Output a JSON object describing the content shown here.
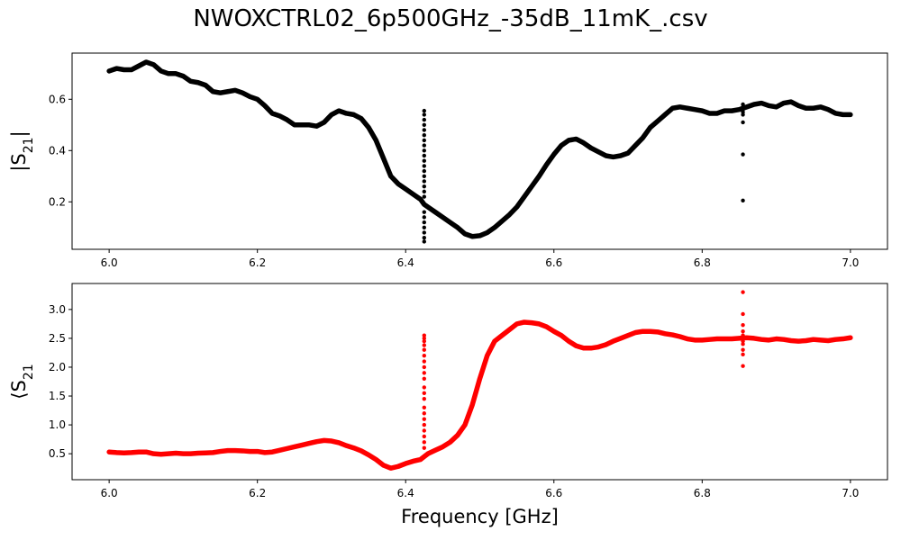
{
  "figure": {
    "title": "NWOXCTRL02_6p500GHz_-35dB_11mK_.csv"
  },
  "chart_data": [
    {
      "type": "scatter",
      "ylabel": "|S21|",
      "ylabel_main": "|S",
      "ylabel_sub": "21",
      "ylabel_tail": "|",
      "xlabel": "",
      "xlim": [
        5.95,
        7.05
      ],
      "ylim": [
        0.015,
        0.78
      ],
      "xticks": [
        "6.0",
        "6.2",
        "6.4",
        "6.6",
        "6.8",
        "7.0"
      ],
      "xtick_values": [
        6.0,
        6.2,
        6.4,
        6.6,
        6.8,
        7.0
      ],
      "yticks": [
        "0.2",
        "0.4",
        "0.6"
      ],
      "ytick_values": [
        0.2,
        0.4,
        0.6
      ],
      "grid": false,
      "color": "#000000",
      "series": [
        {
          "trace": [
            [
              6.0,
              0.71
            ],
            [
              6.01,
              0.72
            ],
            [
              6.02,
              0.715
            ],
            [
              6.03,
              0.715
            ],
            [
              6.04,
              0.73
            ],
            [
              6.05,
              0.745
            ],
            [
              6.06,
              0.735
            ],
            [
              6.07,
              0.71
            ],
            [
              6.08,
              0.7
            ],
            [
              6.09,
              0.7
            ],
            [
              6.1,
              0.69
            ],
            [
              6.11,
              0.67
            ],
            [
              6.12,
              0.665
            ],
            [
              6.13,
              0.655
            ],
            [
              6.14,
              0.63
            ],
            [
              6.15,
              0.625
            ],
            [
              6.16,
              0.63
            ],
            [
              6.17,
              0.635
            ],
            [
              6.18,
              0.625
            ],
            [
              6.19,
              0.61
            ],
            [
              6.2,
              0.6
            ],
            [
              6.21,
              0.575
            ],
            [
              6.22,
              0.545
            ],
            [
              6.23,
              0.535
            ],
            [
              6.24,
              0.52
            ],
            [
              6.25,
              0.5
            ],
            [
              6.26,
              0.5
            ],
            [
              6.27,
              0.5
            ],
            [
              6.28,
              0.495
            ],
            [
              6.29,
              0.51
            ],
            [
              6.3,
              0.54
            ],
            [
              6.31,
              0.555
            ],
            [
              6.32,
              0.545
            ],
            [
              6.33,
              0.54
            ],
            [
              6.34,
              0.525
            ],
            [
              6.35,
              0.49
            ],
            [
              6.36,
              0.44
            ],
            [
              6.37,
              0.37
            ],
            [
              6.38,
              0.3
            ],
            [
              6.39,
              0.27
            ],
            [
              6.4,
              0.25
            ],
            [
              6.41,
              0.23
            ],
            [
              6.42,
              0.21
            ],
            [
              6.425,
              0.19
            ],
            [
              6.43,
              0.18
            ],
            [
              6.44,
              0.16
            ],
            [
              6.45,
              0.14
            ],
            [
              6.46,
              0.12
            ],
            [
              6.47,
              0.1
            ],
            [
              6.48,
              0.075
            ],
            [
              6.49,
              0.065
            ],
            [
              6.5,
              0.068
            ],
            [
              6.51,
              0.08
            ],
            [
              6.52,
              0.1
            ],
            [
              6.53,
              0.125
            ],
            [
              6.54,
              0.15
            ],
            [
              6.55,
              0.18
            ],
            [
              6.56,
              0.22
            ],
            [
              6.57,
              0.26
            ],
            [
              6.58,
              0.3
            ],
            [
              6.59,
              0.345
            ],
            [
              6.6,
              0.385
            ],
            [
              6.61,
              0.42
            ],
            [
              6.62,
              0.44
            ],
            [
              6.63,
              0.445
            ],
            [
              6.64,
              0.43
            ],
            [
              6.65,
              0.41
            ],
            [
              6.66,
              0.395
            ],
            [
              6.67,
              0.38
            ],
            [
              6.68,
              0.375
            ],
            [
              6.69,
              0.38
            ],
            [
              6.7,
              0.39
            ],
            [
              6.71,
              0.42
            ],
            [
              6.72,
              0.45
            ],
            [
              6.73,
              0.49
            ],
            [
              6.74,
              0.515
            ],
            [
              6.75,
              0.54
            ],
            [
              6.76,
              0.565
            ],
            [
              6.77,
              0.57
            ],
            [
              6.78,
              0.565
            ],
            [
              6.79,
              0.56
            ],
            [
              6.8,
              0.555
            ],
            [
              6.81,
              0.545
            ],
            [
              6.82,
              0.545
            ],
            [
              6.83,
              0.555
            ],
            [
              6.84,
              0.555
            ],
            [
              6.85,
              0.56
            ],
            [
              6.86,
              0.57
            ],
            [
              6.87,
              0.58
            ],
            [
              6.88,
              0.585
            ],
            [
              6.89,
              0.575
            ],
            [
              6.9,
              0.57
            ],
            [
              6.91,
              0.585
            ],
            [
              6.92,
              0.59
            ],
            [
              6.93,
              0.575
            ],
            [
              6.94,
              0.565
            ],
            [
              6.95,
              0.565
            ],
            [
              6.96,
              0.57
            ],
            [
              6.97,
              0.56
            ],
            [
              6.98,
              0.545
            ],
            [
              6.99,
              0.54
            ],
            [
              7.0,
              0.54
            ]
          ],
          "outliers": [
            [
              6.425,
              0.555
            ],
            [
              6.425,
              0.54
            ],
            [
              6.425,
              0.52
            ],
            [
              6.425,
              0.5
            ],
            [
              6.425,
              0.48
            ],
            [
              6.425,
              0.46
            ],
            [
              6.425,
              0.44
            ],
            [
              6.425,
              0.42
            ],
            [
              6.425,
              0.4
            ],
            [
              6.425,
              0.38
            ],
            [
              6.425,
              0.36
            ],
            [
              6.425,
              0.34
            ],
            [
              6.425,
              0.32
            ],
            [
              6.425,
              0.3
            ],
            [
              6.425,
              0.28
            ],
            [
              6.425,
              0.26
            ],
            [
              6.425,
              0.24
            ],
            [
              6.425,
              0.22
            ],
            [
              6.425,
              0.16
            ],
            [
              6.425,
              0.14
            ],
            [
              6.425,
              0.12
            ],
            [
              6.425,
              0.1
            ],
            [
              6.425,
              0.08
            ],
            [
              6.425,
              0.06
            ],
            [
              6.425,
              0.045
            ],
            [
              6.855,
              0.58
            ],
            [
              6.855,
              0.57
            ],
            [
              6.855,
              0.56
            ],
            [
              6.855,
              0.55
            ],
            [
              6.855,
              0.54
            ],
            [
              6.855,
              0.51
            ],
            [
              6.855,
              0.385
            ],
            [
              6.855,
              0.205
            ]
          ]
        }
      ]
    },
    {
      "type": "scatter",
      "ylabel": "∠S21",
      "ylabel_main": "⟨S",
      "ylabel_sub": "21",
      "ylabel_tail": "",
      "xlabel": "Frequency [GHz]",
      "xlim": [
        5.95,
        7.05
      ],
      "ylim": [
        0.05,
        3.45
      ],
      "xticks": [
        "6.0",
        "6.2",
        "6.4",
        "6.6",
        "6.8",
        "7.0"
      ],
      "xtick_values": [
        6.0,
        6.2,
        6.4,
        6.6,
        6.8,
        7.0
      ],
      "yticks": [
        "0.5",
        "1.0",
        "1.5",
        "2.0",
        "2.5",
        "3.0"
      ],
      "ytick_values": [
        0.5,
        1.0,
        1.5,
        2.0,
        2.5,
        3.0
      ],
      "grid": false,
      "color": "#ff0000",
      "series": [
        {
          "trace": [
            [
              6.0,
              0.53
            ],
            [
              6.01,
              0.52
            ],
            [
              6.02,
              0.515
            ],
            [
              6.03,
              0.52
            ],
            [
              6.04,
              0.53
            ],
            [
              6.05,
              0.53
            ],
            [
              6.06,
              0.5
            ],
            [
              6.07,
              0.49
            ],
            [
              6.08,
              0.5
            ],
            [
              6.09,
              0.51
            ],
            [
              6.1,
              0.5
            ],
            [
              6.11,
              0.5
            ],
            [
              6.12,
              0.51
            ],
            [
              6.13,
              0.515
            ],
            [
              6.14,
              0.52
            ],
            [
              6.15,
              0.54
            ],
            [
              6.16,
              0.555
            ],
            [
              6.17,
              0.555
            ],
            [
              6.18,
              0.55
            ],
            [
              6.19,
              0.54
            ],
            [
              6.2,
              0.54
            ],
            [
              6.21,
              0.52
            ],
            [
              6.22,
              0.53
            ],
            [
              6.23,
              0.56
            ],
            [
              6.24,
              0.59
            ],
            [
              6.25,
              0.62
            ],
            [
              6.26,
              0.65
            ],
            [
              6.27,
              0.68
            ],
            [
              6.28,
              0.71
            ],
            [
              6.29,
              0.73
            ],
            [
              6.3,
              0.72
            ],
            [
              6.31,
              0.69
            ],
            [
              6.32,
              0.64
            ],
            [
              6.33,
              0.6
            ],
            [
              6.34,
              0.55
            ],
            [
              6.35,
              0.48
            ],
            [
              6.36,
              0.4
            ],
            [
              6.37,
              0.3
            ],
            [
              6.38,
              0.25
            ],
            [
              6.39,
              0.28
            ],
            [
              6.4,
              0.33
            ],
            [
              6.41,
              0.37
            ],
            [
              6.42,
              0.4
            ],
            [
              6.43,
              0.5
            ],
            [
              6.44,
              0.56
            ],
            [
              6.45,
              0.62
            ],
            [
              6.46,
              0.7
            ],
            [
              6.47,
              0.82
            ],
            [
              6.48,
              1.0
            ],
            [
              6.49,
              1.35
            ],
            [
              6.5,
              1.8
            ],
            [
              6.51,
              2.2
            ],
            [
              6.52,
              2.45
            ],
            [
              6.53,
              2.55
            ],
            [
              6.54,
              2.65
            ],
            [
              6.55,
              2.75
            ],
            [
              6.56,
              2.78
            ],
            [
              6.57,
              2.77
            ],
            [
              6.58,
              2.75
            ],
            [
              6.59,
              2.7
            ],
            [
              6.6,
              2.62
            ],
            [
              6.61,
              2.55
            ],
            [
              6.62,
              2.45
            ],
            [
              6.63,
              2.37
            ],
            [
              6.64,
              2.33
            ],
            [
              6.65,
              2.33
            ],
            [
              6.66,
              2.35
            ],
            [
              6.67,
              2.39
            ],
            [
              6.68,
              2.45
            ],
            [
              6.69,
              2.5
            ],
            [
              6.7,
              2.55
            ],
            [
              6.71,
              2.6
            ],
            [
              6.72,
              2.62
            ],
            [
              6.73,
              2.62
            ],
            [
              6.74,
              2.61
            ],
            [
              6.75,
              2.58
            ],
            [
              6.76,
              2.56
            ],
            [
              6.77,
              2.53
            ],
            [
              6.78,
              2.49
            ],
            [
              6.79,
              2.47
            ],
            [
              6.8,
              2.47
            ],
            [
              6.81,
              2.48
            ],
            [
              6.82,
              2.49
            ],
            [
              6.83,
              2.49
            ],
            [
              6.84,
              2.49
            ],
            [
              6.85,
              2.5
            ],
            [
              6.86,
              2.51
            ],
            [
              6.87,
              2.5
            ],
            [
              6.88,
              2.48
            ],
            [
              6.89,
              2.47
            ],
            [
              6.9,
              2.49
            ],
            [
              6.91,
              2.48
            ],
            [
              6.92,
              2.46
            ],
            [
              6.93,
              2.45
            ],
            [
              6.94,
              2.46
            ],
            [
              6.95,
              2.48
            ],
            [
              6.96,
              2.47
            ],
            [
              6.97,
              2.46
            ],
            [
              6.98,
              2.48
            ],
            [
              6.99,
              2.49
            ],
            [
              7.0,
              2.51
            ]
          ],
          "outliers": [
            [
              6.425,
              2.55
            ],
            [
              6.425,
              2.5
            ],
            [
              6.425,
              2.45
            ],
            [
              6.425,
              2.38
            ],
            [
              6.425,
              2.3
            ],
            [
              6.425,
              2.2
            ],
            [
              6.425,
              2.1
            ],
            [
              6.425,
              2.0
            ],
            [
              6.425,
              1.9
            ],
            [
              6.425,
              1.8
            ],
            [
              6.425,
              1.65
            ],
            [
              6.425,
              1.55
            ],
            [
              6.425,
              1.45
            ],
            [
              6.425,
              1.3
            ],
            [
              6.425,
              1.2
            ],
            [
              6.425,
              1.1
            ],
            [
              6.425,
              1.0
            ],
            [
              6.425,
              0.9
            ],
            [
              6.425,
              0.8
            ],
            [
              6.425,
              0.7
            ],
            [
              6.425,
              0.6
            ],
            [
              6.855,
              3.3
            ],
            [
              6.855,
              2.92
            ],
            [
              6.855,
              2.73
            ],
            [
              6.855,
              2.62
            ],
            [
              6.855,
              2.55
            ],
            [
              6.855,
              2.45
            ],
            [
              6.855,
              2.4
            ],
            [
              6.855,
              2.3
            ],
            [
              6.855,
              2.22
            ],
            [
              6.855,
              2.02
            ]
          ]
        }
      ]
    }
  ]
}
